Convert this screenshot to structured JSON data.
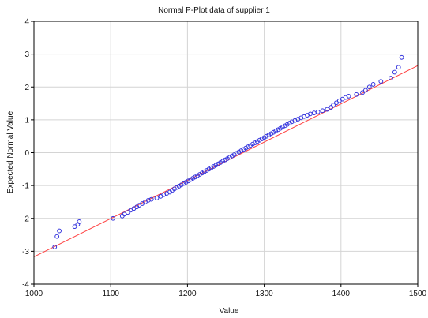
{
  "chart_data": {
    "type": "scatter",
    "title": "Normal P-Plot data of supplier 1",
    "xlabel": "Value",
    "ylabel": "Expected Normal Value",
    "xlim": [
      1000,
      1500
    ],
    "ylim": [
      -4,
      4
    ],
    "x_ticks": [
      "1000",
      "1100",
      "1200",
      "1300",
      "1400",
      "1500"
    ],
    "y_ticks": [
      "4",
      "3",
      "2",
      "1",
      "0",
      "-1",
      "-2",
      "-3",
      "-4"
    ],
    "grid": true,
    "legend": "none",
    "colors": {
      "points": "#3333dd",
      "line": "#ff4040",
      "grid": "#d4d4d4",
      "frame": "#000000"
    },
    "reference_line": {
      "x": [
        1000,
        1500
      ],
      "y": [
        -3.17,
        2.65
      ]
    },
    "points": [
      [
        1027,
        -2.87
      ],
      [
        1030,
        -2.55
      ],
      [
        1033,
        -2.38
      ],
      [
        1053,
        -2.25
      ],
      [
        1057,
        -2.18
      ],
      [
        1059,
        -2.1
      ],
      [
        1103,
        -2.0
      ],
      [
        1115,
        -1.93
      ],
      [
        1118,
        -1.87
      ],
      [
        1122,
        -1.82
      ],
      [
        1126,
        -1.75
      ],
      [
        1130,
        -1.7
      ],
      [
        1134,
        -1.65
      ],
      [
        1137,
        -1.6
      ],
      [
        1141,
        -1.55
      ],
      [
        1145,
        -1.5
      ],
      [
        1149,
        -1.45
      ],
      [
        1153,
        -1.42
      ],
      [
        1160,
        -1.38
      ],
      [
        1165,
        -1.33
      ],
      [
        1169,
        -1.28
      ],
      [
        1173,
        -1.24
      ],
      [
        1177,
        -1.2
      ],
      [
        1180,
        -1.15
      ],
      [
        1183,
        -1.1
      ],
      [
        1186,
        -1.06
      ],
      [
        1189,
        -1.02
      ],
      [
        1192,
        -0.98
      ],
      [
        1195,
        -0.94
      ],
      [
        1198,
        -0.9
      ],
      [
        1201,
        -0.86
      ],
      [
        1204,
        -0.82
      ],
      [
        1207,
        -0.78
      ],
      [
        1210,
        -0.74
      ],
      [
        1213,
        -0.7
      ],
      [
        1216,
        -0.66
      ],
      [
        1219,
        -0.62
      ],
      [
        1222,
        -0.58
      ],
      [
        1225,
        -0.54
      ],
      [
        1228,
        -0.5
      ],
      [
        1231,
        -0.46
      ],
      [
        1234,
        -0.42
      ],
      [
        1237,
        -0.38
      ],
      [
        1240,
        -0.34
      ],
      [
        1243,
        -0.3
      ],
      [
        1246,
        -0.26
      ],
      [
        1249,
        -0.22
      ],
      [
        1252,
        -0.18
      ],
      [
        1255,
        -0.14
      ],
      [
        1258,
        -0.1
      ],
      [
        1261,
        -0.06
      ],
      [
        1264,
        -0.02
      ],
      [
        1267,
        0.02
      ],
      [
        1270,
        0.06
      ],
      [
        1273,
        0.1
      ],
      [
        1276,
        0.14
      ],
      [
        1279,
        0.18
      ],
      [
        1282,
        0.22
      ],
      [
        1285,
        0.26
      ],
      [
        1288,
        0.3
      ],
      [
        1291,
        0.34
      ],
      [
        1294,
        0.38
      ],
      [
        1297,
        0.42
      ],
      [
        1300,
        0.46
      ],
      [
        1303,
        0.5
      ],
      [
        1306,
        0.54
      ],
      [
        1309,
        0.58
      ],
      [
        1312,
        0.62
      ],
      [
        1315,
        0.66
      ],
      [
        1318,
        0.7
      ],
      [
        1321,
        0.74
      ],
      [
        1324,
        0.78
      ],
      [
        1327,
        0.82
      ],
      [
        1330,
        0.86
      ],
      [
        1333,
        0.9
      ],
      [
        1336,
        0.94
      ],
      [
        1340,
        0.98
      ],
      [
        1344,
        1.02
      ],
      [
        1348,
        1.06
      ],
      [
        1352,
        1.1
      ],
      [
        1356,
        1.14
      ],
      [
        1360,
        1.18
      ],
      [
        1365,
        1.21
      ],
      [
        1370,
        1.24
      ],
      [
        1376,
        1.28
      ],
      [
        1382,
        1.32
      ],
      [
        1387,
        1.38
      ],
      [
        1390,
        1.45
      ],
      [
        1394,
        1.52
      ],
      [
        1398,
        1.58
      ],
      [
        1402,
        1.63
      ],
      [
        1406,
        1.68
      ],
      [
        1410,
        1.72
      ],
      [
        1420,
        1.77
      ],
      [
        1428,
        1.83
      ],
      [
        1432,
        1.9
      ],
      [
        1437,
        2.0
      ],
      [
        1442,
        2.08
      ],
      [
        1452,
        2.17
      ],
      [
        1465,
        2.27
      ],
      [
        1470,
        2.45
      ],
      [
        1475,
        2.6
      ],
      [
        1479,
        2.9
      ]
    ]
  }
}
